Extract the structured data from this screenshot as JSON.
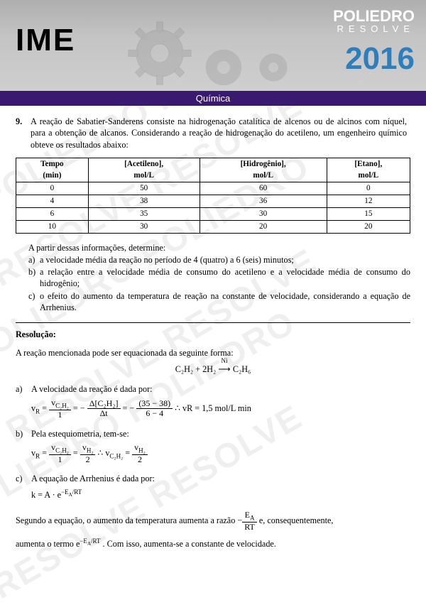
{
  "header": {
    "ime": "IME",
    "brand_main": "POLIEDRO",
    "brand_sub": "RESOLVE",
    "year": "2016",
    "year_color": "#2d7ebc",
    "bar_color": "#3a1a6e"
  },
  "subject": "Química",
  "question": {
    "number": "9.",
    "text": "A reação de Sabatier-Sanderens consiste na hidrogenação catalítica de alcenos ou de alcinos com níquel, para a obtenção de alcanos. Considerando a reação de hidrogenação do acetileno, um engenheiro químico obteve os resultados abaixo:"
  },
  "table": {
    "headers": [
      "Tempo\n(min)",
      "[Acetileno],\nmol/L",
      "[Hidrogênio],\nmol/L",
      "[Etano],\nmol/L"
    ],
    "rows": [
      [
        "0",
        "50",
        "60",
        "0"
      ],
      [
        "4",
        "38",
        "36",
        "12"
      ],
      [
        "6",
        "35",
        "30",
        "15"
      ],
      [
        "10",
        "30",
        "20",
        "20"
      ]
    ]
  },
  "parts_intro": "A partir dessas informações, determine:",
  "parts": {
    "a": "a velocidade média da reação no período de 4 (quatro) a 6 (seis) minutos;",
    "b": "a relação entre a velocidade média de consumo do acetileno e a velocidade média de consumo do hidrogênio;",
    "c": "o efeito do aumento da temperatura de reação na constante de velocidade, considerando a equação de Arrhenius."
  },
  "resolution_label": "Resolução:",
  "solution": {
    "intro": "A reação mencionada pode ser equacionada da seguinte forma:",
    "equation": {
      "lhs": "C₂H₂ + 2H₂",
      "catalyst": "Ni",
      "arrow": "⟶",
      "rhs": "C₂H₆"
    },
    "a": {
      "lead": "A velocidade da reação é dada por:",
      "result": "∴ vR = 1,5 mol/L min"
    },
    "b": {
      "lead": "Pela estequiometria, tem-se:"
    },
    "c": {
      "lead": "A equação de Arrhenius é dada por:",
      "eq": "k = A · e",
      "exp": "−E_A/RT",
      "para1a": "Segundo a equação, o aumento da temperatura aumenta a razão ",
      "para1b": " e, consequentemente,",
      "para2a": "aumenta o termo e",
      "para2b": ". Com isso, aumenta-se a constante de velocidade."
    }
  }
}
